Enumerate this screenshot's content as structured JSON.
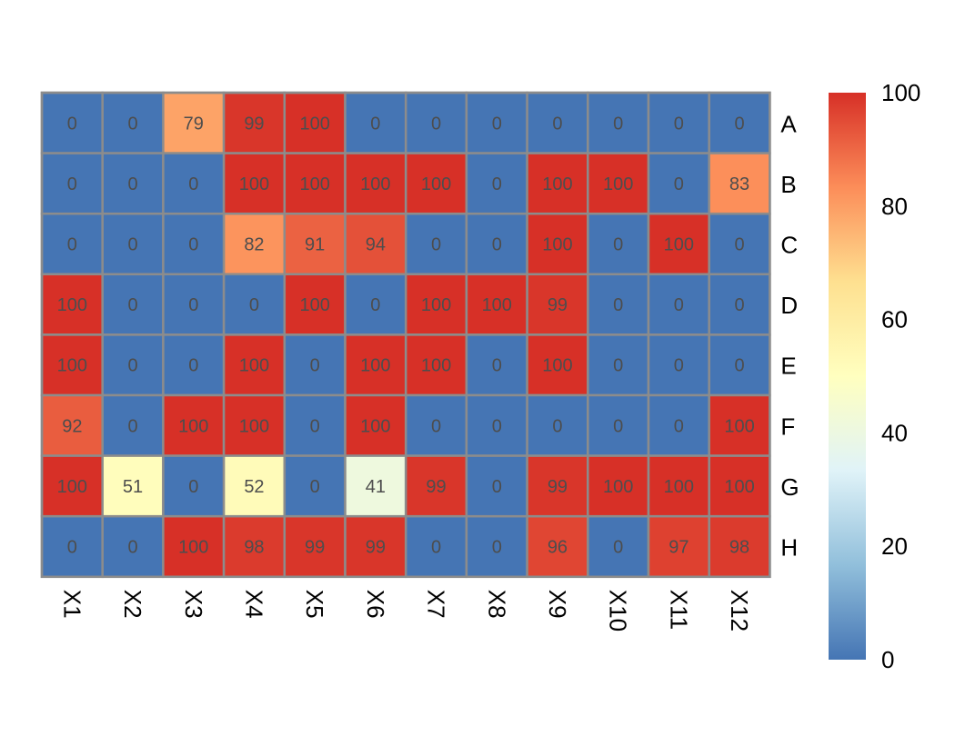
{
  "chart_data": {
    "type": "heatmap",
    "rows": [
      "A",
      "B",
      "C",
      "D",
      "E",
      "F",
      "G",
      "H"
    ],
    "columns": [
      "X1",
      "X2",
      "X3",
      "X4",
      "X5",
      "X6",
      "X7",
      "X8",
      "X9",
      "X10",
      "X11",
      "X12"
    ],
    "values": [
      [
        0,
        0,
        79,
        99,
        100,
        0,
        0,
        0,
        0,
        0,
        0,
        0
      ],
      [
        0,
        0,
        0,
        100,
        100,
        100,
        100,
        0,
        100,
        100,
        0,
        83
      ],
      [
        0,
        0,
        0,
        82,
        91,
        94,
        0,
        0,
        100,
        0,
        100,
        0
      ],
      [
        100,
        0,
        0,
        0,
        100,
        0,
        100,
        100,
        99,
        0,
        0,
        0
      ],
      [
        100,
        0,
        0,
        100,
        0,
        100,
        100,
        0,
        100,
        0,
        0,
        0
      ],
      [
        92,
        0,
        100,
        100,
        0,
        100,
        0,
        0,
        0,
        0,
        0,
        100
      ],
      [
        100,
        51,
        0,
        52,
        0,
        41,
        99,
        0,
        99,
        100,
        100,
        100
      ],
      [
        0,
        0,
        100,
        98,
        99,
        99,
        0,
        0,
        96,
        0,
        97,
        98
      ]
    ],
    "color_scale": {
      "min": 0,
      "max": 100,
      "ticks": [
        "0",
        "20",
        "40",
        "60",
        "80",
        "100"
      ],
      "colors": [
        "#4575B4",
        "#91BFDB",
        "#E0F3F8",
        "#FFFFBF",
        "#FEE090",
        "#FC8D59",
        "#D73027"
      ]
    },
    "legend_position": "right",
    "grid": true,
    "cell_border_color": "#8C8C8C"
  }
}
